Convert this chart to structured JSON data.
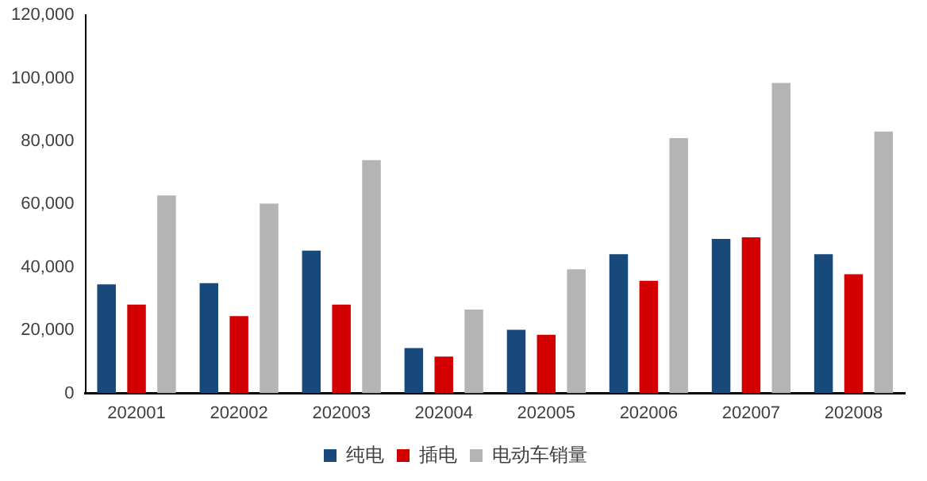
{
  "chart_data": {
    "type": "bar",
    "categories": [
      "202001",
      "202002",
      "202003",
      "202004",
      "202005",
      "202006",
      "202007",
      "202008"
    ],
    "series": [
      {
        "name": "纯电",
        "color": "#17497a",
        "values": [
          34600,
          35000,
          45300,
          14400,
          20200,
          44200,
          49000,
          44200
        ]
      },
      {
        "name": "插电",
        "color": "#d20000",
        "values": [
          28200,
          24500,
          28200,
          11700,
          18600,
          35700,
          49500,
          37800
        ]
      },
      {
        "name": "电动车销量",
        "color": "#b4b4b4",
        "values": [
          62800,
          60200,
          74000,
          26600,
          39400,
          81000,
          98500,
          83100
        ]
      }
    ],
    "ylim": [
      0,
      120000
    ],
    "yticks": [
      {
        "value": 0,
        "label": "0"
      },
      {
        "value": 20000,
        "label": "20,000"
      },
      {
        "value": 40000,
        "label": "40,000"
      },
      {
        "value": 60000,
        "label": "60,000"
      },
      {
        "value": 80000,
        "label": "80,000"
      },
      {
        "value": 100000,
        "label": "100,000"
      },
      {
        "value": 120000,
        "label": "120,000"
      }
    ],
    "grid": false,
    "legend": "bottom"
  }
}
